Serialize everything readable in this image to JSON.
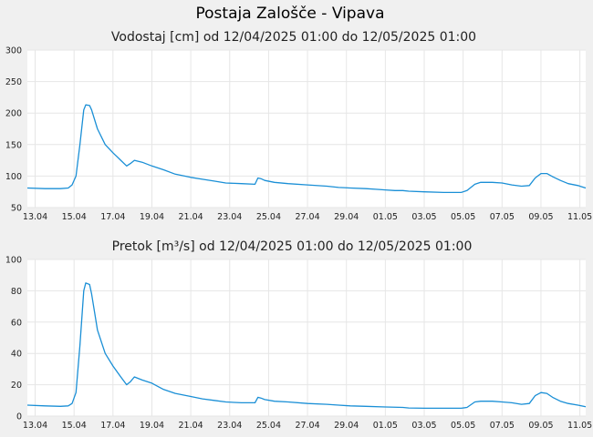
{
  "page": {
    "title": "Postaja Zalošče - Vipava"
  },
  "chart_data": [
    {
      "type": "line",
      "title": "Vodostaj [cm] od 12/04/2025 01:00 do 12/05/2025 01:00",
      "xlabel": "",
      "ylabel": "",
      "x_range_days": [
        12.6,
        41.3
      ],
      "ylim": [
        50,
        300
      ],
      "y_ticks": [
        50,
        100,
        150,
        200,
        250,
        300
      ],
      "x_ticks": [
        {
          "day": 13,
          "label": "13.04"
        },
        {
          "day": 15,
          "label": "15.04"
        },
        {
          "day": 17,
          "label": "17.04"
        },
        {
          "day": 19,
          "label": "19.04"
        },
        {
          "day": 21,
          "label": "21.04"
        },
        {
          "day": 23,
          "label": "23.04"
        },
        {
          "day": 25,
          "label": "25.04"
        },
        {
          "day": 27,
          "label": "27.04"
        },
        {
          "day": 29,
          "label": "29.04"
        },
        {
          "day": 31,
          "label": "01.05"
        },
        {
          "day": 33,
          "label": "03.05"
        },
        {
          "day": 35,
          "label": "05.05"
        },
        {
          "day": 37,
          "label": "07.05"
        },
        {
          "day": 39,
          "label": "09.05"
        },
        {
          "day": 41,
          "label": "11.05"
        }
      ],
      "grid": true,
      "series": [
        {
          "name": "",
          "color": "#1a8fd6",
          "points": [
            [
              12.6,
              81
            ],
            [
              13.5,
              80
            ],
            [
              14.3,
              80
            ],
            [
              14.7,
              81
            ],
            [
              14.9,
              86
            ],
            [
              15.1,
              100
            ],
            [
              15.3,
              150
            ],
            [
              15.5,
              205
            ],
            [
              15.6,
              213
            ],
            [
              15.8,
              212
            ],
            [
              15.9,
              205
            ],
            [
              16.2,
              175
            ],
            [
              16.6,
              150
            ],
            [
              17.0,
              137
            ],
            [
              17.4,
              125
            ],
            [
              17.7,
              116
            ],
            [
              17.9,
              120
            ],
            [
              18.1,
              125
            ],
            [
              18.5,
              122
            ],
            [
              19.0,
              116
            ],
            [
              19.6,
              110
            ],
            [
              20.2,
              103
            ],
            [
              21.0,
              98
            ],
            [
              21.6,
              95
            ],
            [
              22.2,
              92
            ],
            [
              22.8,
              89
            ],
            [
              23.6,
              88
            ],
            [
              24.3,
              87
            ],
            [
              24.45,
              97
            ],
            [
              24.6,
              96
            ],
            [
              24.8,
              93
            ],
            [
              25.3,
              90
            ],
            [
              26.0,
              88
            ],
            [
              27.0,
              86
            ],
            [
              28.0,
              84
            ],
            [
              28.6,
              82
            ],
            [
              29.2,
              81
            ],
            [
              30.0,
              80
            ],
            [
              30.5,
              79
            ],
            [
              31.0,
              78
            ],
            [
              31.5,
              77
            ],
            [
              31.9,
              77
            ],
            [
              32.2,
              76
            ],
            [
              33.0,
              75
            ],
            [
              34.0,
              74
            ],
            [
              34.9,
              74
            ],
            [
              35.2,
              77
            ],
            [
              35.6,
              87
            ],
            [
              35.9,
              90
            ],
            [
              36.5,
              90
            ],
            [
              37.0,
              89
            ],
            [
              37.5,
              86
            ],
            [
              38.0,
              84
            ],
            [
              38.4,
              85
            ],
            [
              38.7,
              97
            ],
            [
              39.0,
              104
            ],
            [
              39.3,
              104
            ],
            [
              39.6,
              99
            ],
            [
              40.0,
              93
            ],
            [
              40.4,
              88
            ],
            [
              40.9,
              85
            ],
            [
              41.3,
              81
            ]
          ]
        }
      ]
    },
    {
      "type": "line",
      "title": "Pretok [m³/s] od 12/04/2025 01:00 do 12/05/2025 01:00",
      "xlabel": "",
      "ylabel": "",
      "x_range_days": [
        12.6,
        41.3
      ],
      "ylim": [
        0,
        100
      ],
      "y_ticks": [
        0,
        20,
        40,
        60,
        80,
        100
      ],
      "x_ticks": [
        {
          "day": 13,
          "label": "13.04"
        },
        {
          "day": 15,
          "label": "15.04"
        },
        {
          "day": 17,
          "label": "17.04"
        },
        {
          "day": 19,
          "label": "19.04"
        },
        {
          "day": 21,
          "label": "21.04"
        },
        {
          "day": 23,
          "label": "23.04"
        },
        {
          "day": 25,
          "label": "25.04"
        },
        {
          "day": 27,
          "label": "27.04"
        },
        {
          "day": 29,
          "label": "29.04"
        },
        {
          "day": 31,
          "label": "01.05"
        },
        {
          "day": 33,
          "label": "03.05"
        },
        {
          "day": 35,
          "label": "05.05"
        },
        {
          "day": 37,
          "label": "07.05"
        },
        {
          "day": 39,
          "label": "09.05"
        },
        {
          "day": 41,
          "label": "11.05"
        }
      ],
      "grid": true,
      "series": [
        {
          "name": "",
          "color": "#1a8fd6",
          "points": [
            [
              12.6,
              7
            ],
            [
              13.5,
              6.5
            ],
            [
              14.3,
              6.2
            ],
            [
              14.7,
              6.5
            ],
            [
              14.9,
              8
            ],
            [
              15.1,
              15
            ],
            [
              15.3,
              45
            ],
            [
              15.5,
              80
            ],
            [
              15.6,
              85
            ],
            [
              15.8,
              84
            ],
            [
              15.9,
              78
            ],
            [
              16.2,
              55
            ],
            [
              16.6,
              40
            ],
            [
              17.0,
              32
            ],
            [
              17.4,
              25
            ],
            [
              17.7,
              20
            ],
            [
              17.9,
              22
            ],
            [
              18.1,
              25
            ],
            [
              18.5,
              23
            ],
            [
              19.0,
              21
            ],
            [
              19.6,
              17
            ],
            [
              20.2,
              14.5
            ],
            [
              21.0,
              12.5
            ],
            [
              21.6,
              11
            ],
            [
              22.2,
              10
            ],
            [
              22.8,
              9
            ],
            [
              23.6,
              8.5
            ],
            [
              24.3,
              8.5
            ],
            [
              24.45,
              12
            ],
            [
              24.6,
              11.5
            ],
            [
              24.8,
              10.5
            ],
            [
              25.3,
              9.5
            ],
            [
              26.0,
              9
            ],
            [
              27.0,
              8
            ],
            [
              28.0,
              7.5
            ],
            [
              28.6,
              7
            ],
            [
              29.2,
              6.5
            ],
            [
              30.0,
              6.2
            ],
            [
              31.0,
              5.8
            ],
            [
              31.9,
              5.5
            ],
            [
              32.2,
              5.2
            ],
            [
              33.0,
              5
            ],
            [
              34.0,
              5
            ],
            [
              34.9,
              5
            ],
            [
              35.2,
              5.5
            ],
            [
              35.6,
              9
            ],
            [
              35.9,
              9.5
            ],
            [
              36.5,
              9.5
            ],
            [
              37.0,
              9
            ],
            [
              37.5,
              8.5
            ],
            [
              38.0,
              7.5
            ],
            [
              38.4,
              8
            ],
            [
              38.7,
              13
            ],
            [
              39.0,
              15
            ],
            [
              39.3,
              14.5
            ],
            [
              39.6,
              12
            ],
            [
              40.0,
              9.5
            ],
            [
              40.4,
              8
            ],
            [
              40.9,
              7
            ],
            [
              41.3,
              6
            ]
          ]
        }
      ]
    }
  ]
}
